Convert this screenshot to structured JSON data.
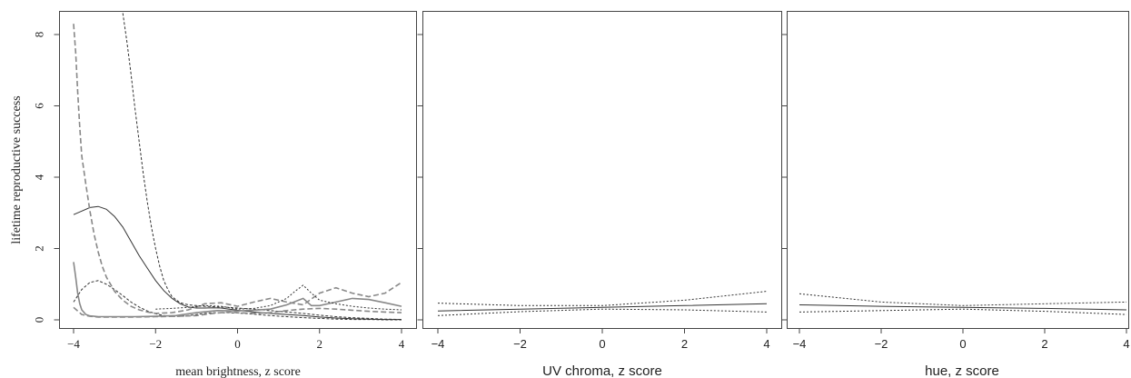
{
  "chart_data": [
    {
      "type": "line",
      "xlabel": "mean brightness, z score",
      "ylabel": "lifetime reproductive success",
      "xlim": [
        -4,
        4
      ],
      "ylim": [
        0,
        8.5
      ],
      "xticks": [
        -4,
        -2,
        0,
        2,
        4
      ],
      "xtick_labels": [
        "−4",
        "−2",
        "0",
        "2",
        "4"
      ],
      "yticks": [
        0,
        2,
        4,
        6,
        8
      ],
      "ytick_labels": [
        "0",
        "2",
        "4",
        "6",
        "8"
      ],
      "series": [
        {
          "color": "#333333",
          "dash": "solid",
          "width": 1,
          "x": [
            -4,
            -3.8,
            -3.6,
            -3.4,
            -3.2,
            -3.0,
            -2.8,
            -2.6,
            -2.4,
            -2.2,
            -2.0,
            -1.8,
            -1.6,
            -1.4,
            -1.2,
            -1.0,
            -0.8,
            -0.6,
            -0.4,
            -0.2,
            0.0,
            0.4,
            0.8,
            1.2,
            1.6,
            2.0,
            2.4,
            2.8,
            3.2,
            3.6,
            4.0
          ],
          "y": [
            2.95,
            3.05,
            3.15,
            3.18,
            3.1,
            2.9,
            2.6,
            2.2,
            1.8,
            1.45,
            1.1,
            0.82,
            0.6,
            0.45,
            0.36,
            0.33,
            0.33,
            0.34,
            0.33,
            0.3,
            0.27,
            0.22,
            0.18,
            0.15,
            0.12,
            0.08,
            0.05,
            0.03,
            0.02,
            0.01,
            0.01
          ]
        },
        {
          "color": "#333333",
          "dash": "3,2",
          "width": 1,
          "x": [
            -2.8,
            -2.7,
            -2.6,
            -2.5,
            -2.4,
            -2.3,
            -2.2,
            -2.1,
            -2.0,
            -1.9,
            -1.8,
            -1.7,
            -1.6,
            -1.4,
            -1.2,
            -1.0,
            -0.8,
            -0.6,
            -0.4,
            -0.2,
            0.0,
            0.4,
            0.8,
            1.2,
            1.6,
            2.0,
            2.4,
            2.8,
            3.2,
            3.6,
            4.0
          ],
          "y": [
            8.6,
            7.8,
            6.9,
            5.9,
            5.0,
            4.1,
            3.3,
            2.6,
            2.0,
            1.5,
            1.1,
            0.85,
            0.65,
            0.48,
            0.42,
            0.4,
            0.38,
            0.37,
            0.36,
            0.35,
            0.33,
            0.3,
            0.26,
            0.22,
            0.18,
            0.13,
            0.09,
            0.06,
            0.04,
            0.02,
            0.01
          ]
        },
        {
          "color": "#333333",
          "dash": "3,2",
          "width": 1,
          "x": [
            -4,
            -3.8,
            -3.6,
            -3.4,
            -3.2,
            -3.0,
            -2.8,
            -2.6,
            -2.4,
            -2.2,
            -2.0,
            -1.8,
            -1.6,
            -1.4,
            -1.2,
            -1.0,
            -0.8,
            -0.6,
            -0.4,
            -0.2,
            0.0,
            0.4,
            0.8,
            1.2,
            1.6,
            2.0,
            2.4,
            2.8,
            3.2,
            3.6,
            4.0
          ],
          "y": [
            0.5,
            0.85,
            1.05,
            1.1,
            1.0,
            0.85,
            0.68,
            0.5,
            0.36,
            0.25,
            0.17,
            0.12,
            0.1,
            0.1,
            0.12,
            0.15,
            0.18,
            0.2,
            0.2,
            0.2,
            0.19,
            0.16,
            0.12,
            0.09,
            0.06,
            0.04,
            0.02,
            0.01,
            0.01,
            0.0,
            0.0
          ]
        },
        {
          "color": "#888888",
          "dash": "solid",
          "width": 1.6,
          "x": [
            -4,
            -3.95,
            -3.9,
            -3.85,
            -3.8,
            -3.7,
            -3.6,
            -3.5,
            -3.4,
            -3.2,
            -3.0,
            -2.5,
            -2.0,
            -1.5,
            -1.0,
            -0.5,
            0.0,
            0.4,
            0.8,
            1.2,
            1.6,
            1.8,
            2.0,
            2.4,
            2.8,
            3.2,
            3.6,
            4.0
          ],
          "y": [
            1.62,
            1.2,
            0.75,
            0.45,
            0.28,
            0.15,
            0.11,
            0.1,
            0.09,
            0.09,
            0.09,
            0.09,
            0.1,
            0.12,
            0.2,
            0.26,
            0.25,
            0.27,
            0.3,
            0.42,
            0.6,
            0.4,
            0.4,
            0.5,
            0.6,
            0.57,
            0.48,
            0.38
          ]
        },
        {
          "color": "#888888",
          "dash": "6,3",
          "width": 1.6,
          "x": [
            -4,
            -3.95,
            -3.9,
            -3.85,
            -3.8,
            -3.7,
            -3.6,
            -3.5,
            -3.4,
            -3.3,
            -3.2,
            -3.0,
            -2.8,
            -2.6,
            -2.4,
            -2.2,
            -2.0,
            -1.6,
            -1.2,
            -0.8,
            -0.4,
            0.0,
            0.4,
            0.8,
            1.2,
            1.6,
            2.0,
            2.4,
            2.8,
            3.2,
            3.6,
            4.0
          ],
          "y": [
            8.3,
            7.5,
            6.4,
            5.4,
            4.6,
            3.8,
            3.05,
            2.4,
            1.9,
            1.5,
            1.2,
            0.8,
            0.55,
            0.38,
            0.28,
            0.22,
            0.18,
            0.2,
            0.28,
            0.45,
            0.48,
            0.38,
            0.5,
            0.6,
            0.5,
            0.42,
            0.75,
            0.9,
            0.75,
            0.65,
            0.75,
            1.05
          ]
        },
        {
          "color": "#888888",
          "dash": "6,3",
          "width": 1.6,
          "x": [
            -4,
            -3.8,
            -3.6,
            -3.4,
            -3.2,
            -3.0,
            -2.5,
            -2.0,
            -1.5,
            -1.0,
            -0.6,
            -0.2,
            0.0,
            0.4,
            0.8,
            1.2,
            1.6,
            2.0,
            2.4,
            2.8,
            3.2,
            3.6,
            4.0
          ],
          "y": [
            0.35,
            0.15,
            0.1,
            0.08,
            0.08,
            0.08,
            0.08,
            0.09,
            0.1,
            0.12,
            0.18,
            0.22,
            0.2,
            0.18,
            0.2,
            0.26,
            0.3,
            0.32,
            0.3,
            0.27,
            0.24,
            0.22,
            0.2
          ]
        },
        {
          "color": "#333333",
          "dash": "2,2",
          "width": 1,
          "x": [
            -2.0,
            -1.6,
            -1.2,
            -0.8,
            -0.4,
            0.0,
            0.4,
            0.8,
            1.2,
            1.4,
            1.6,
            1.8,
            2.0,
            2.4,
            2.8,
            3.2,
            3.6,
            4.0
          ],
          "y": [
            0.3,
            0.32,
            0.35,
            0.4,
            0.38,
            0.3,
            0.32,
            0.4,
            0.6,
            0.8,
            0.97,
            0.75,
            0.55,
            0.45,
            0.38,
            0.33,
            0.3,
            0.28
          ]
        }
      ]
    },
    {
      "type": "line",
      "xlabel": "UV chroma, z score",
      "ylabel": "",
      "xlim": [
        -4,
        4
      ],
      "ylim": [
        0,
        8.5
      ],
      "xticks": [
        -4,
        -2,
        0,
        2,
        4
      ],
      "xtick_labels": [
        "−4",
        "−2",
        "0",
        "2",
        "4"
      ],
      "yticks": [
        0,
        2,
        4,
        6,
        8
      ],
      "ytick_labels": [],
      "series": [
        {
          "color": "#333333",
          "dash": "solid",
          "width": 1,
          "x": [
            -4,
            -2,
            0,
            2,
            4
          ],
          "y": [
            0.25,
            0.3,
            0.35,
            0.4,
            0.45
          ]
        },
        {
          "color": "#333333",
          "dash": "2,2",
          "width": 1,
          "x": [
            -4,
            -2,
            0,
            2,
            4
          ],
          "y": [
            0.47,
            0.4,
            0.4,
            0.55,
            0.8
          ]
        },
        {
          "color": "#333333",
          "dash": "2,2",
          "width": 1,
          "x": [
            -4,
            -2,
            0,
            2,
            4
          ],
          "y": [
            0.12,
            0.23,
            0.3,
            0.28,
            0.22
          ]
        }
      ]
    },
    {
      "type": "line",
      "xlabel": "hue, z score",
      "ylabel": "",
      "xlim": [
        -4,
        4
      ],
      "ylim": [
        0,
        8.5
      ],
      "xticks": [
        -4,
        -2,
        0,
        2,
        4
      ],
      "xtick_labels": [
        "−4",
        "−2",
        "0",
        "2",
        "4"
      ],
      "yticks": [
        0,
        2,
        4,
        6,
        8
      ],
      "ytick_labels": [],
      "series": [
        {
          "color": "#333333",
          "dash": "solid",
          "width": 1,
          "x": [
            -4,
            -2,
            0,
            2,
            4
          ],
          "y": [
            0.42,
            0.38,
            0.35,
            0.32,
            0.28
          ]
        },
        {
          "color": "#333333",
          "dash": "2,2",
          "width": 1,
          "x": [
            -4,
            -2,
            0,
            2,
            4
          ],
          "y": [
            0.73,
            0.5,
            0.4,
            0.45,
            0.5
          ]
        },
        {
          "color": "#333333",
          "dash": "2,2",
          "width": 1,
          "x": [
            -4,
            -2,
            0,
            2,
            4
          ],
          "y": [
            0.22,
            0.26,
            0.3,
            0.24,
            0.15
          ]
        }
      ]
    }
  ]
}
